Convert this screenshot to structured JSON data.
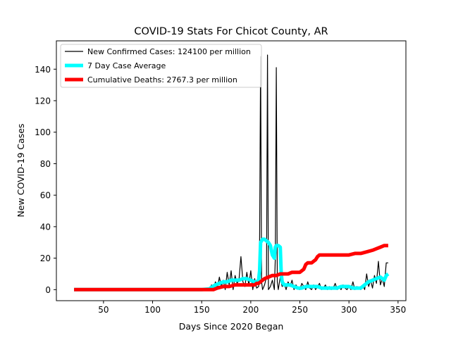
{
  "chart_data": {
    "type": "line",
    "title": "COVID-19 Stats For Chicot County, AR",
    "xlabel": "Days Since 2020 Began",
    "ylabel": "New COVID-19 Cases",
    "xlim": [
      2,
      358
    ],
    "ylim": [
      -7,
      158
    ],
    "xticks": [
      50,
      100,
      150,
      200,
      250,
      300,
      350
    ],
    "yticks": [
      0,
      20,
      40,
      60,
      80,
      100,
      120,
      140
    ],
    "grid": false,
    "legend_position": "top-left",
    "series": [
      {
        "name": "New Confirmed Cases: 124100 per million",
        "color": "#000000",
        "x": [
          20,
          60,
          100,
          150,
          158,
          160,
          162,
          164,
          166,
          168,
          170,
          172,
          174,
          176,
          178,
          180,
          182,
          184,
          186,
          188,
          190,
          192,
          194,
          196,
          198,
          200,
          202,
          204,
          206,
          208,
          209,
          210,
          211,
          212,
          214,
          216,
          217,
          218,
          220,
          222,
          224,
          225,
          226,
          227,
          228,
          230,
          232,
          234,
          236,
          238,
          240,
          242,
          244,
          246,
          248,
          250,
          252,
          254,
          256,
          258,
          260,
          262,
          264,
          266,
          268,
          270,
          272,
          274,
          276,
          278,
          280,
          282,
          284,
          286,
          288,
          290,
          292,
          294,
          296,
          298,
          300,
          302,
          304,
          306,
          308,
          310,
          312,
          314,
          316,
          318,
          320,
          322,
          324,
          326,
          328,
          330,
          332,
          334,
          336,
          338,
          340
        ],
        "values": [
          0,
          0,
          0,
          0,
          0,
          3,
          0,
          5,
          1,
          8,
          2,
          6,
          0,
          11,
          3,
          12,
          0,
          9,
          4,
          6,
          21,
          5,
          2,
          11,
          3,
          12,
          0,
          7,
          1,
          2,
          30,
          148,
          5,
          0,
          3,
          8,
          149,
          0,
          2,
          6,
          0,
          20,
          141,
          5,
          0,
          8,
          2,
          4,
          0,
          5,
          2,
          6,
          0,
          3,
          1,
          0,
          4,
          2,
          0,
          5,
          1,
          0,
          3,
          0,
          2,
          4,
          0,
          1,
          3,
          0,
          2,
          0,
          1,
          4,
          0,
          2,
          0,
          3,
          1,
          0,
          2,
          0,
          5,
          0,
          2,
          1,
          0,
          3,
          0,
          10,
          2,
          6,
          1,
          9,
          4,
          18,
          3,
          7,
          2,
          17,
          17
        ]
      },
      {
        "name": "7 Day Case Average",
        "color": "#00ffff",
        "x": [
          20,
          60,
          100,
          150,
          158,
          160,
          164,
          168,
          172,
          176,
          180,
          184,
          188,
          192,
          196,
          200,
          204,
          206,
          208,
          209,
          210,
          212,
          214,
          216,
          218,
          220,
          222,
          224,
          225,
          226,
          228,
          230,
          231,
          232,
          234,
          236,
          238,
          240,
          244,
          248,
          252,
          256,
          260,
          264,
          268,
          272,
          276,
          280,
          284,
          288,
          292,
          296,
          300,
          304,
          308,
          312,
          316,
          320,
          324,
          328,
          332,
          336,
          338,
          340
        ],
        "values": [
          0,
          0,
          0,
          0,
          0.5,
          1.5,
          3,
          4,
          5,
          5,
          6,
          6,
          6,
          7,
          7,
          6,
          5,
          5,
          6,
          12,
          30,
          32,
          32,
          31,
          30,
          28,
          22,
          20,
          27,
          28,
          28,
          27,
          10,
          5,
          3,
          3,
          3,
          3,
          2,
          1,
          1,
          2,
          2,
          2,
          2,
          1,
          1,
          1,
          1,
          1,
          2,
          2,
          2,
          1,
          1,
          1,
          3,
          5,
          6,
          7,
          8,
          6,
          9,
          10
        ]
      },
      {
        "name": "Cumulative Deaths: 2767.3 per million",
        "color": "#ff0000",
        "x": [
          20,
          100,
          150,
          158,
          162,
          166,
          172,
          178,
          184,
          190,
          196,
          200,
          204,
          206,
          208,
          210,
          212,
          214,
          218,
          222,
          226,
          230,
          234,
          238,
          242,
          246,
          250,
          254,
          256,
          258,
          262,
          266,
          268,
          270,
          276,
          282,
          288,
          294,
          300,
          306,
          312,
          318,
          324,
          328,
          332,
          336,
          340
        ],
        "values": [
          0,
          0,
          0,
          0,
          0,
          1,
          2,
          2,
          3,
          3,
          3,
          3,
          3,
          4,
          4,
          5,
          6,
          7,
          8,
          9,
          9,
          10,
          10,
          10,
          11,
          11,
          11,
          13,
          16,
          17,
          17,
          19,
          21,
          22,
          22,
          22,
          22,
          22,
          22,
          23,
          23,
          24,
          25,
          26,
          27,
          28,
          28
        ]
      }
    ]
  }
}
